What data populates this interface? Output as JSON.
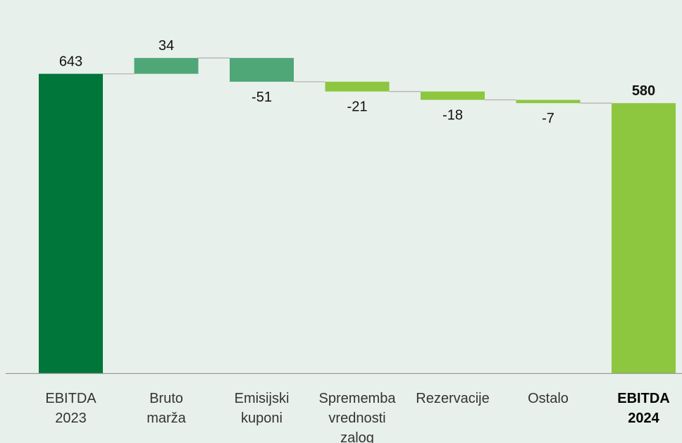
{
  "chart_data": {
    "type": "bar",
    "subtype": "waterfall",
    "categories": [
      [
        "EBITDA",
        "2023"
      ],
      [
        "Bruto",
        "marža"
      ],
      [
        "Emisijski",
        "kuponi"
      ],
      [
        "Sprememba",
        "vrednosti",
        "zalog"
      ],
      [
        "Rezervacije"
      ],
      [
        "Ostalo"
      ],
      [
        "EBITDA",
        "2024"
      ]
    ],
    "values": [
      643,
      34,
      -51,
      -21,
      -18,
      -7,
      580
    ],
    "value_labels": [
      "643",
      "34",
      "-51",
      "-21",
      "-18",
      "-7",
      "580"
    ],
    "bar_kinds": [
      "total",
      "increase",
      "decrease",
      "decrease",
      "decrease",
      "decrease",
      "total"
    ],
    "bold_categories": [
      6
    ],
    "ylim": [
      0,
      680
    ],
    "grid": false,
    "legend": "none",
    "colors": {
      "start_total": "#00763a",
      "increase": "#4fa676",
      "decrease_large": "#4fa676",
      "decrease": "#8dc63f",
      "end_total": "#8dc63f",
      "connector": "#b5b5b5",
      "baseline": "#9a9a9a"
    },
    "bar_colors": [
      "#00763a",
      "#4fa676",
      "#4fa676",
      "#8dc63f",
      "#8dc63f",
      "#8dc63f",
      "#8dc63f"
    ]
  }
}
